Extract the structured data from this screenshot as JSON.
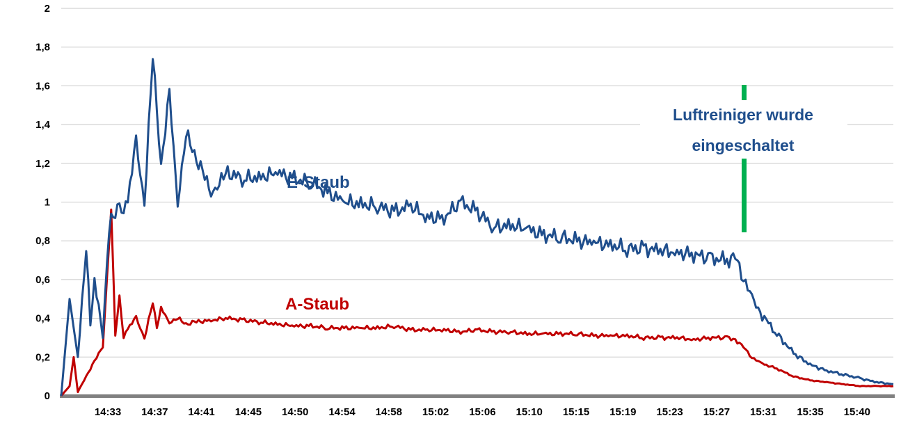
{
  "chart_data": {
    "type": "line",
    "title": "",
    "xlabel": "",
    "ylabel": "",
    "ylim": [
      0,
      2
    ],
    "yticks": [
      "0",
      "0,2",
      "0,4",
      "0,6",
      "0,8",
      "1",
      "1,2",
      "1,4",
      "1,6",
      "1,8",
      "2"
    ],
    "xticks": [
      "14:33",
      "14:37",
      "14:41",
      "14:45",
      "14:50",
      "14:54",
      "14:58",
      "15:02",
      "15:06",
      "15:10",
      "15:15",
      "15:19",
      "15:23",
      "15:27",
      "15:31",
      "15:35",
      "15:40"
    ],
    "grid": true,
    "x_index_max": 100,
    "series": [
      {
        "name": "E-Staub",
        "color": "#1f4e8c",
        "x": [
          0,
          1,
          2,
          3,
          3.5,
          4,
          5,
          5.5,
          6,
          7,
          7.5,
          8,
          9,
          10,
          11,
          12,
          13,
          14,
          15,
          16,
          17,
          18,
          19,
          20,
          22,
          24,
          26,
          28,
          30,
          32,
          34,
          36,
          38,
          40,
          42,
          44,
          46,
          48,
          50,
          52,
          54,
          56,
          58,
          60,
          62,
          64,
          66,
          68,
          70,
          72,
          74,
          76,
          78,
          80,
          81,
          82,
          83,
          84,
          86,
          88,
          90,
          92,
          94,
          96,
          98,
          100
        ],
        "values": [
          0.0,
          0.5,
          0.2,
          0.78,
          0.35,
          0.6,
          0.3,
          0.72,
          0.9,
          1.0,
          0.95,
          1.02,
          1.3,
          1.0,
          1.75,
          1.2,
          1.55,
          1.0,
          1.35,
          1.25,
          1.15,
          1.05,
          1.1,
          1.15,
          1.12,
          1.13,
          1.15,
          1.12,
          1.1,
          1.05,
          1.0,
          0.99,
          0.98,
          0.95,
          0.98,
          0.92,
          0.92,
          1.0,
          0.95,
          0.87,
          0.88,
          0.86,
          0.83,
          0.82,
          0.8,
          0.79,
          0.78,
          0.76,
          0.76,
          0.75,
          0.74,
          0.73,
          0.71,
          0.7,
          0.71,
          0.62,
          0.5,
          0.43,
          0.32,
          0.22,
          0.16,
          0.13,
          0.11,
          0.09,
          0.07,
          0.06
        ]
      },
      {
        "name": "A-Staub",
        "color": "#c00000",
        "x": [
          0,
          1,
          1.5,
          2,
          3,
          4,
          5,
          6,
          6.5,
          7,
          7.5,
          8,
          9,
          10,
          11,
          11.5,
          12,
          13,
          14,
          15,
          16,
          18,
          20,
          22,
          24,
          26,
          28,
          30,
          32,
          34,
          36,
          38,
          40,
          42,
          44,
          46,
          48,
          50,
          52,
          54,
          56,
          58,
          60,
          62,
          64,
          66,
          68,
          70,
          72,
          74,
          76,
          78,
          80,
          81,
          82,
          83,
          84,
          86,
          88,
          90,
          92,
          94,
          96,
          98,
          100
        ],
        "values": [
          0.0,
          0.05,
          0.2,
          0.02,
          0.1,
          0.18,
          0.25,
          0.97,
          0.3,
          0.52,
          0.3,
          0.35,
          0.4,
          0.3,
          0.48,
          0.35,
          0.45,
          0.38,
          0.4,
          0.37,
          0.38,
          0.39,
          0.4,
          0.39,
          0.38,
          0.37,
          0.36,
          0.36,
          0.35,
          0.35,
          0.35,
          0.35,
          0.36,
          0.34,
          0.34,
          0.34,
          0.33,
          0.34,
          0.33,
          0.33,
          0.32,
          0.32,
          0.32,
          0.32,
          0.31,
          0.31,
          0.31,
          0.3,
          0.3,
          0.3,
          0.29,
          0.3,
          0.3,
          0.29,
          0.25,
          0.2,
          0.17,
          0.14,
          0.1,
          0.08,
          0.07,
          0.06,
          0.05,
          0.05,
          0.05
        ]
      }
    ],
    "series_labels": [
      "E-Staub",
      "A-Staub"
    ],
    "annotation": {
      "lines": [
        "Luftreiniger  wurde",
        "eingeschaltet"
      ],
      "marker_color": "#00b050",
      "marker_x_index": 82
    }
  }
}
